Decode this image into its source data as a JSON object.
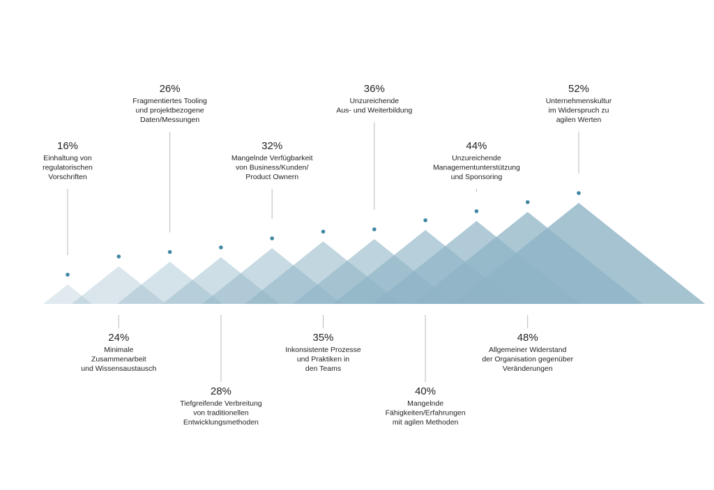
{
  "chart_data": {
    "type": "area",
    "title": "",
    "color": "#8fb4c6",
    "dot_color": "#3f86a3",
    "ylim": [
      0,
      52
    ],
    "categories": [
      "Einhaltung von regulatorischen Vorschriften",
      "Minimale Zusammenarbeit und Wissensaustausch",
      "Fragmentiertes Tooling und projektbezogene Daten/Messungen",
      "Tiefgreifende Verbreitung von traditionellen Entwicklungsmethoden",
      "Mangelnde Verfügbarkeit von Business/Kunden/ Product Ownern",
      "Inkonsistente Prozesse und Praktiken in den Teams",
      "Unzureichende Aus- und Weiterbildung",
      "Mangelnde Fähigkeiten/Erfahrungen mit agilen Methoden",
      "Unzureichende Managementunterstützung und Sponsoring",
      "Allgemeiner Widerstand der Organisation gegenüber Veränderungen",
      "Unternehmenskultur im Widerspruch zu agilen Werten"
    ],
    "values": [
      16,
      24,
      26,
      28,
      32,
      35,
      36,
      40,
      44,
      48,
      52
    ],
    "items": [
      {
        "pct": "16%",
        "label_lines": [
          "Einhaltung von",
          "regulatorischen",
          "Vorschriften"
        ],
        "pos": "top",
        "tier": "low"
      },
      {
        "pct": "24%",
        "label_lines": [
          "Minimale",
          "Zusammenarbeit",
          "und Wissensaustausch"
        ],
        "pos": "bottom",
        "tier": "near"
      },
      {
        "pct": "26%",
        "label_lines": [
          "Fragmentiertes Tooling",
          "und projektbezogene",
          "Daten/Messungen"
        ],
        "pos": "top",
        "tier": "high"
      },
      {
        "pct": "28%",
        "label_lines": [
          "Tiefgreifende Verbreitung",
          "von traditionellen",
          "Entwicklungsmethoden"
        ],
        "pos": "bottom",
        "tier": "far"
      },
      {
        "pct": "32%",
        "label_lines": [
          "Mangelnde Verfügbarkeit",
          "von Business/Kunden/",
          "Product Ownern"
        ],
        "pos": "top",
        "tier": "low"
      },
      {
        "pct": "35%",
        "label_lines": [
          "Inkonsistente Prozesse",
          "und Praktiken in",
          "den Teams"
        ],
        "pos": "bottom",
        "tier": "near"
      },
      {
        "pct": "36%",
        "label_lines": [
          "Unzureichende",
          "Aus- und Weiterbildung"
        ],
        "pos": "top",
        "tier": "high"
      },
      {
        "pct": "40%",
        "label_lines": [
          "Mangelnde",
          "Fähigkeiten/Erfahrungen",
          "mit agilen Methoden"
        ],
        "pos": "bottom",
        "tier": "far"
      },
      {
        "pct": "44%",
        "label_lines": [
          "Unzureichende",
          "Managementunterstützung",
          "und Sponsoring"
        ],
        "pos": "top",
        "tier": "low"
      },
      {
        "pct": "48%",
        "label_lines": [
          "Allgemeiner Widerstand",
          "der Organisation gegenüber",
          "Veränderungen"
        ],
        "pos": "bottom",
        "tier": "near"
      },
      {
        "pct": "52%",
        "label_lines": [
          "Unternehmenskultur",
          "im Widerspruch zu",
          "agilen Werten"
        ],
        "pos": "top",
        "tier": "high"
      }
    ]
  }
}
